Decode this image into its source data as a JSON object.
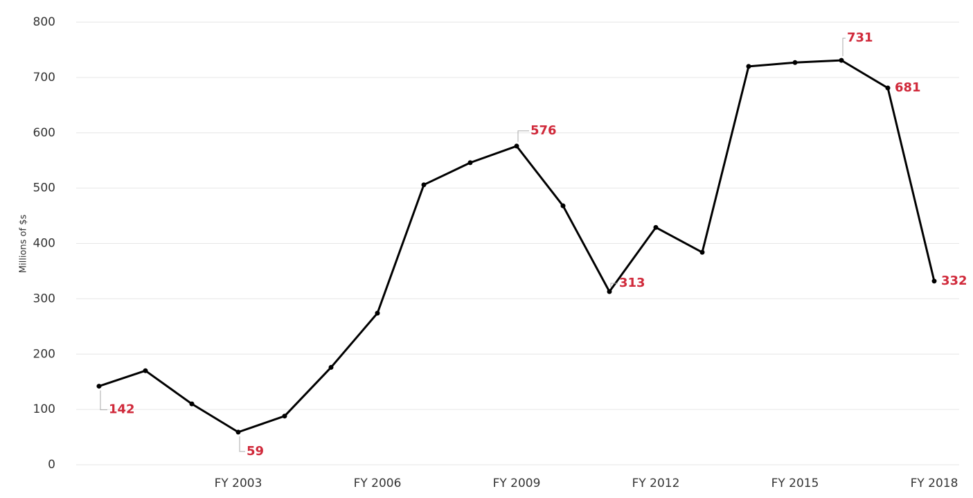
{
  "chart_data": {
    "type": "line",
    "y_label": "Millions of $s",
    "categories": [
      null,
      null,
      null,
      "FY 2003",
      null,
      null,
      "FY 2006",
      null,
      null,
      "FY 2009",
      null,
      null,
      "FY 2012",
      null,
      null,
      "FY 2015",
      null,
      null,
      "FY 2018"
    ],
    "series": [
      {
        "color": "#000000",
        "values": [
          142,
          170,
          110,
          59,
          88,
          176,
          274,
          506,
          546,
          576,
          468,
          313,
          429,
          384,
          720,
          727,
          731,
          681,
          332
        ]
      }
    ],
    "labeled_points": [
      0,
      3,
      9,
      11,
      16,
      17,
      18
    ],
    "label_color": "#d0293a",
    "ylim": [
      0,
      800
    ],
    "yticks": [
      0,
      100,
      200,
      300,
      400,
      500,
      600,
      700,
      800
    ],
    "grid": true
  }
}
